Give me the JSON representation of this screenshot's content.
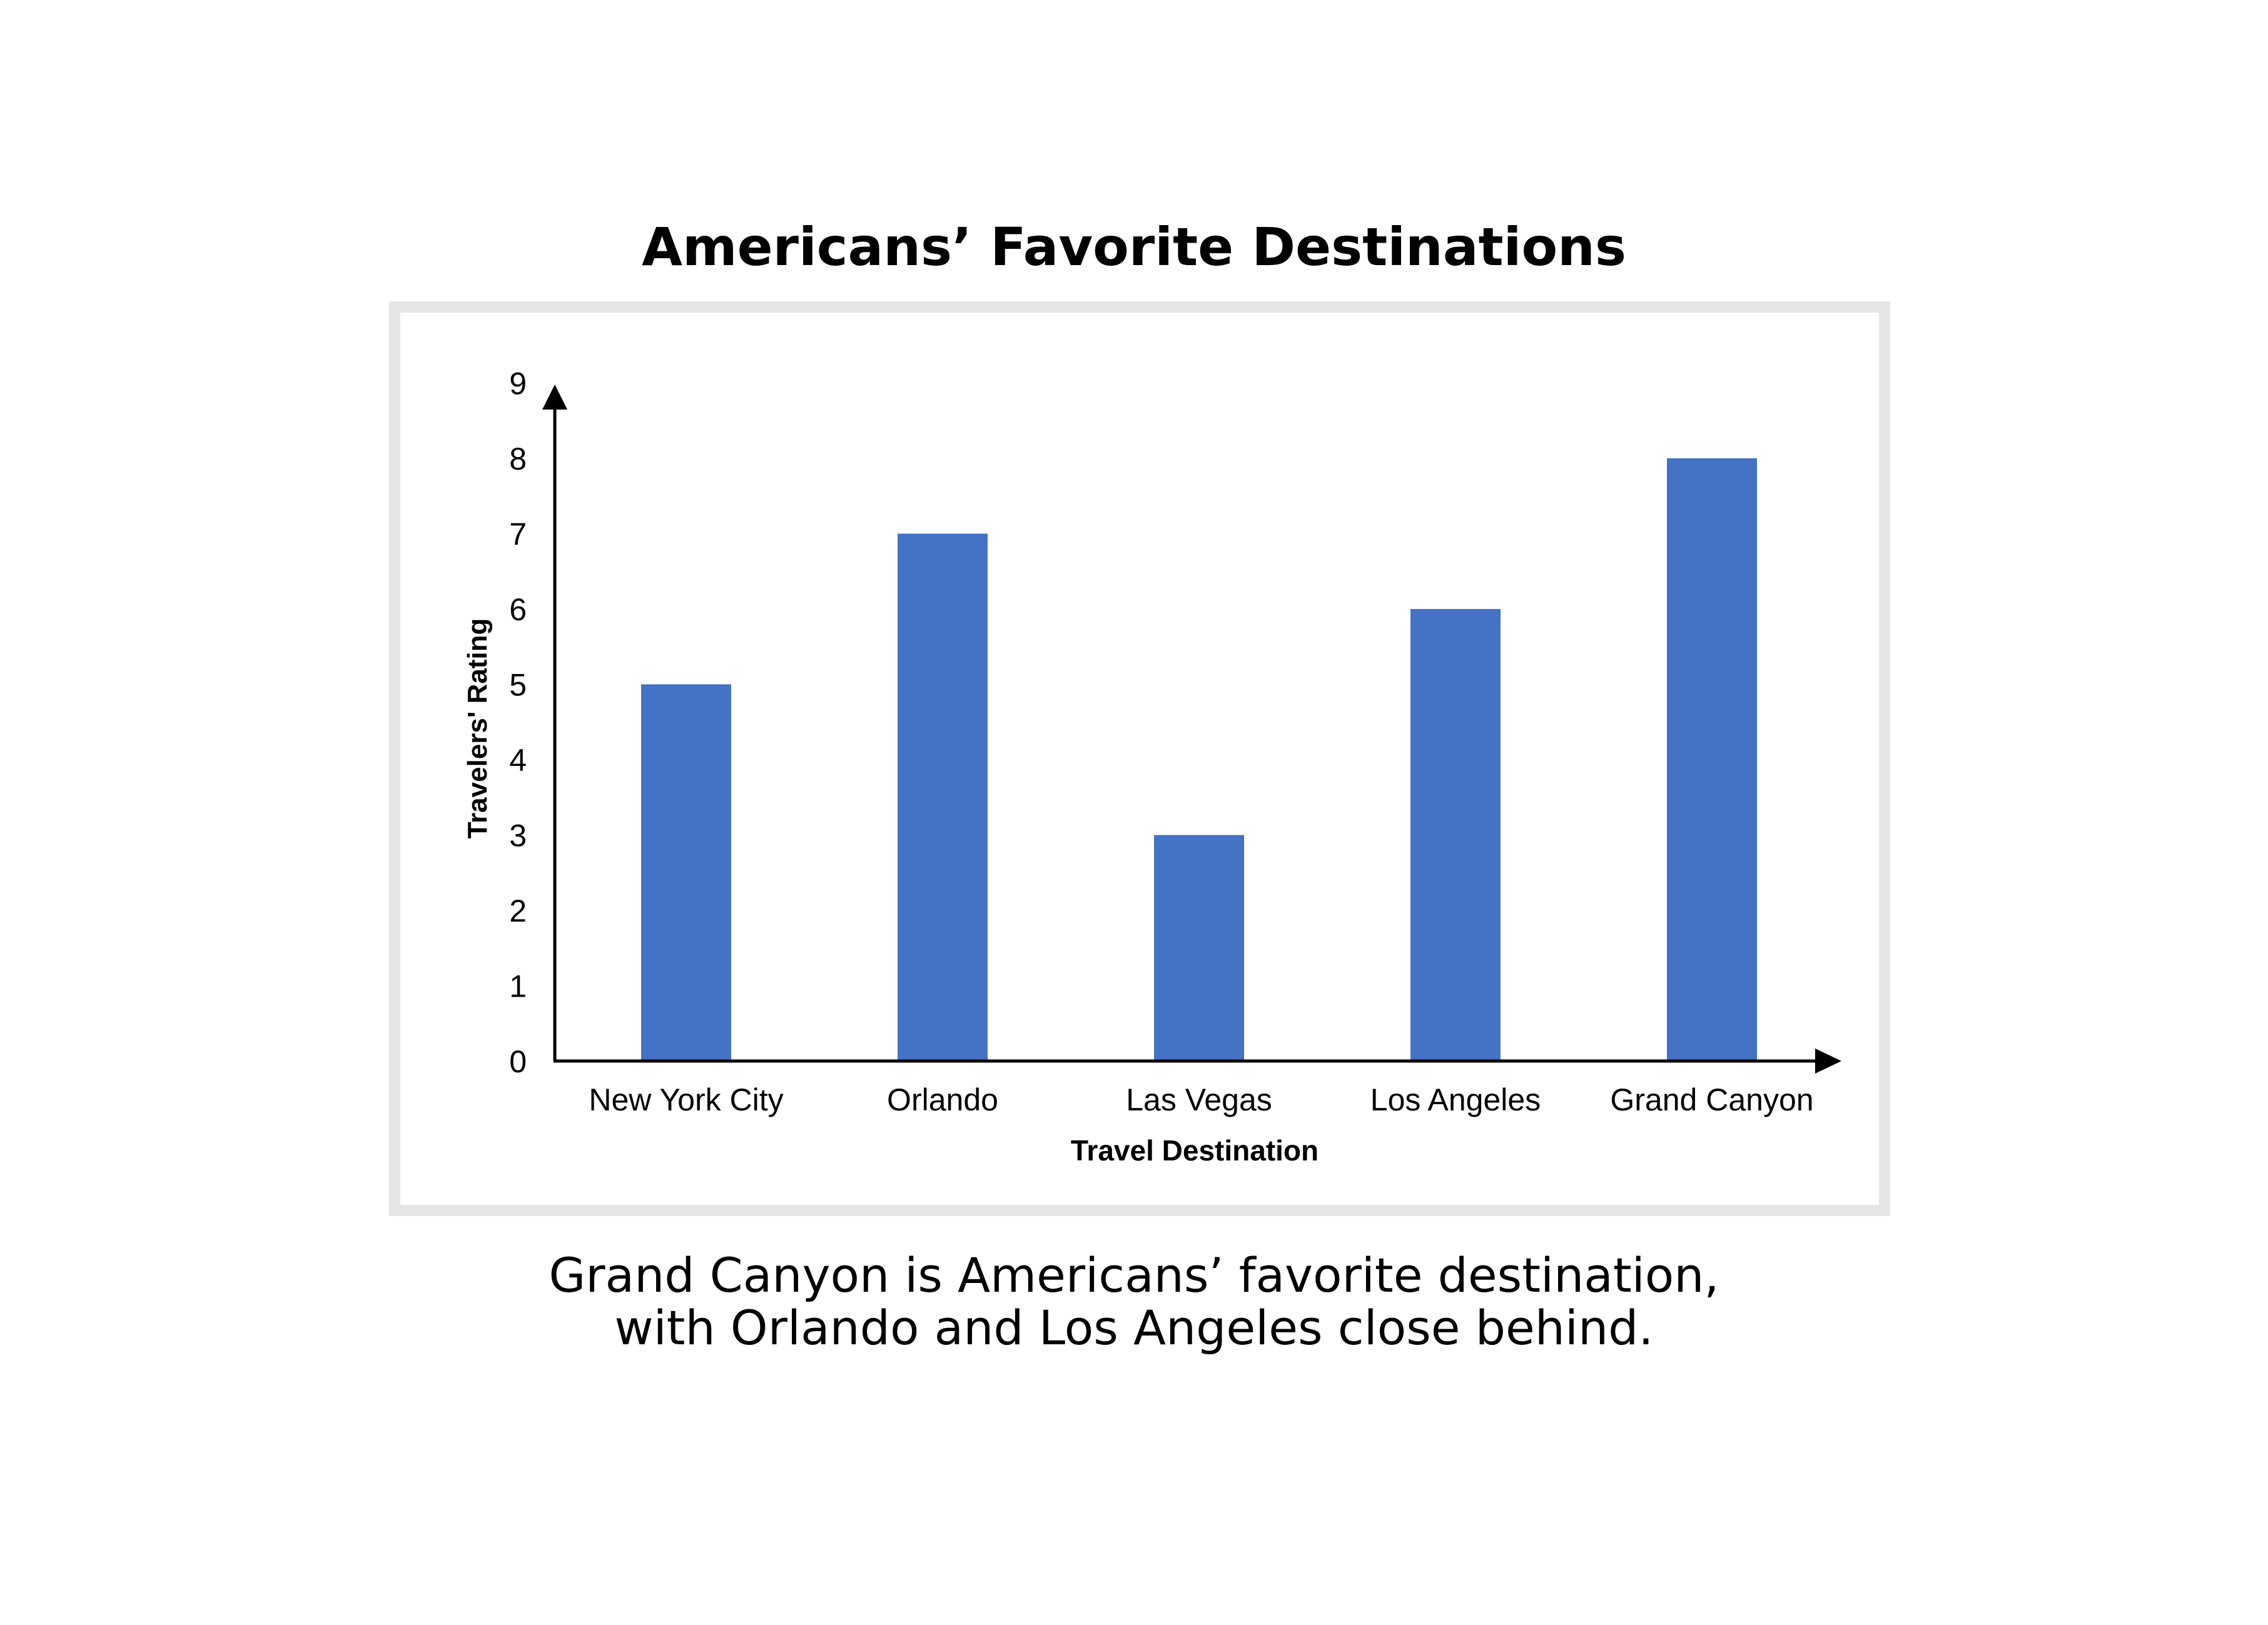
{
  "title": "Americans’ Favorite Destinations",
  "caption": {
    "line1": "Grand Canyon is Americans’ favorite destination,",
    "line2": "with Orlando and Los Angeles close behind."
  },
  "colors": {
    "bar": "#4472c4",
    "frame": "#e6e6e6",
    "axis": "#000000"
  },
  "chart_data": {
    "type": "bar",
    "categories": [
      "New York City",
      "Orlando",
      "Las Vegas",
      "Los Angeles",
      "Grand Canyon"
    ],
    "values": [
      5,
      7,
      3,
      6,
      8
    ],
    "xlabel": "Travel Destination",
    "ylabel": "Travelers' Rating",
    "ylim": [
      0,
      9
    ],
    "yticks": [
      0,
      1,
      2,
      3,
      4,
      5,
      6,
      7,
      8,
      9
    ],
    "grid": false,
    "legend": "none"
  }
}
